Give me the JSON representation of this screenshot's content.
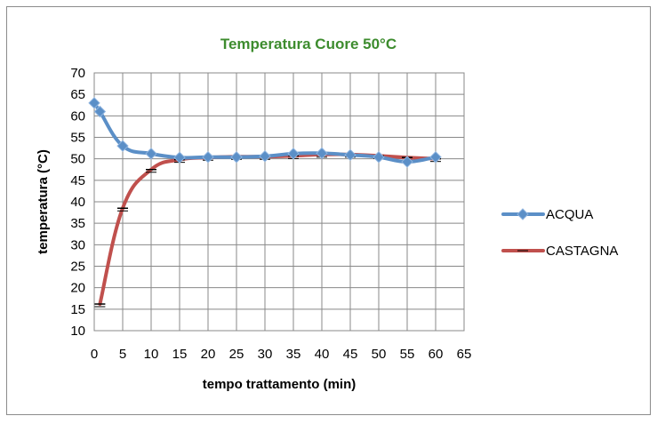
{
  "chart_data": {
    "type": "line",
    "title": "Temperatura Cuore 50°C",
    "xlabel": "tempo trattamento (min)",
    "ylabel": "temperatura (°C)",
    "xlim": [
      0,
      65
    ],
    "ylim": [
      10,
      70
    ],
    "xticks": [
      0,
      5,
      10,
      15,
      20,
      25,
      30,
      35,
      40,
      45,
      50,
      55,
      60,
      65
    ],
    "yticks": [
      10,
      15,
      20,
      25,
      30,
      35,
      40,
      45,
      50,
      55,
      60,
      65,
      70
    ],
    "grid": true,
    "legend_position": "right",
    "colors": {
      "title": "#3d8c2e",
      "acqua": "#5b8fc7",
      "castagna": "#c0504d",
      "grid": "#888888"
    },
    "series": [
      {
        "name": "ACQUA",
        "marker": "diamond",
        "x": [
          0,
          1,
          5,
          10,
          15,
          20,
          25,
          30,
          35,
          40,
          45,
          50,
          55,
          60
        ],
        "y": [
          63,
          61,
          53,
          51.2,
          50.3,
          50.4,
          50.4,
          50.6,
          51.2,
          51.3,
          50.9,
          50.4,
          49.3,
          50.4
        ]
      },
      {
        "name": "CASTAGNA",
        "marker": "dash",
        "x": [
          1,
          5,
          10,
          15,
          20,
          25,
          30,
          35,
          40,
          45,
          50,
          55,
          60
        ],
        "y": [
          16.2,
          38.5,
          47.5,
          49.8,
          50.3,
          50.5,
          50.5,
          50.7,
          51.0,
          51.0,
          50.7,
          50.3,
          50.0
        ]
      }
    ]
  }
}
